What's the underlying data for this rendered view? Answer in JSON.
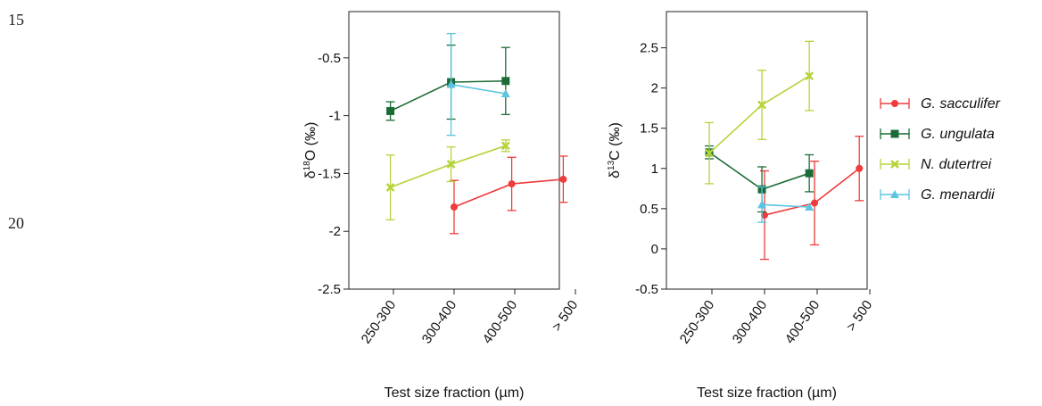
{
  "margin_numbers": [
    "15",
    "20"
  ],
  "legend": [
    {
      "name": "G. sacculifer",
      "color": "#ef3b3b",
      "marker": "circle"
    },
    {
      "name": "G. ungulata",
      "color": "#1a6b36",
      "marker": "square"
    },
    {
      "name": "N. dutertrei",
      "color": "#b5d33a",
      "marker": "cross"
    },
    {
      "name": "G. menardii",
      "color": "#5bc4e0",
      "marker": "triangle"
    }
  ],
  "chart_data": [
    {
      "type": "line",
      "ylabel": "δ¹⁸O (‰)",
      "ylabel_parts": {
        "prefix": "δ",
        "sup": "18",
        "main": "O (‰)"
      },
      "xlabel": "Test size fraction (µm)",
      "categories": [
        "250-300",
        "300-400",
        "400-500",
        "> 500"
      ],
      "ylim": [
        -2.5,
        -0.1
      ],
      "yticks": [
        -2.5,
        -2,
        -1.5,
        -1,
        -0.5
      ],
      "ytick_labels": [
        "-2.5",
        "-2",
        "-1.5",
        "-1",
        "-0.5"
      ],
      "series": [
        {
          "name": "G. sacculifer",
          "x": [
            1.0,
            1.95,
            2.8
          ],
          "y": [
            -1.79,
            -1.59,
            -1.55
          ],
          "err": [
            0.23,
            0.23,
            0.2
          ]
        },
        {
          "name": "G. ungulata",
          "x": [
            -0.05,
            0.95,
            1.85
          ],
          "y": [
            -0.96,
            -0.71,
            -0.7
          ],
          "err": [
            0.08,
            0.32,
            0.29
          ]
        },
        {
          "name": "N. dutertrei",
          "x": [
            -0.05,
            0.95,
            1.85
          ],
          "y": [
            -1.62,
            -1.42,
            -1.26
          ],
          "err": [
            0.28,
            0.15,
            0.05
          ]
        },
        {
          "name": "G. menardii",
          "x": [
            0.95,
            1.85
          ],
          "y": [
            -0.73,
            -0.81
          ],
          "err": [
            0.44,
            0.0
          ]
        }
      ]
    },
    {
      "type": "line",
      "ylabel": "δ¹³C (‰)",
      "ylabel_parts": {
        "prefix": "δ",
        "sup": "13",
        "main": "C (‰)"
      },
      "xlabel": "Test size fraction (µm)",
      "categories": [
        "250-300",
        "300-400",
        "400-500",
        "> 500"
      ],
      "ylim": [
        -0.5,
        2.95
      ],
      "yticks": [
        -0.5,
        0,
        0.5,
        1,
        1.5,
        2,
        2.5
      ],
      "ytick_labels": [
        "-0.5",
        "0",
        "0.5",
        "1",
        "1.5",
        "2",
        "2.5"
      ],
      "series": [
        {
          "name": "G. sacculifer",
          "x": [
            1.0,
            1.95,
            2.8
          ],
          "y": [
            0.42,
            0.57,
            1.0
          ],
          "err": [
            0.55,
            0.52,
            0.4
          ]
        },
        {
          "name": "G. ungulata",
          "x": [
            -0.05,
            0.95,
            1.85
          ],
          "y": [
            1.2,
            0.74,
            0.94
          ],
          "err": [
            0.08,
            0.28,
            0.23
          ]
        },
        {
          "name": "N. dutertrei",
          "x": [
            -0.05,
            0.95,
            1.85
          ],
          "y": [
            1.19,
            1.79,
            2.15
          ],
          "err": [
            0.38,
            0.43,
            0.43
          ]
        },
        {
          "name": "G. menardii",
          "x": [
            0.95,
            1.85
          ],
          "y": [
            0.55,
            0.52
          ],
          "err": [
            0.22,
            0.0
          ]
        }
      ]
    }
  ]
}
